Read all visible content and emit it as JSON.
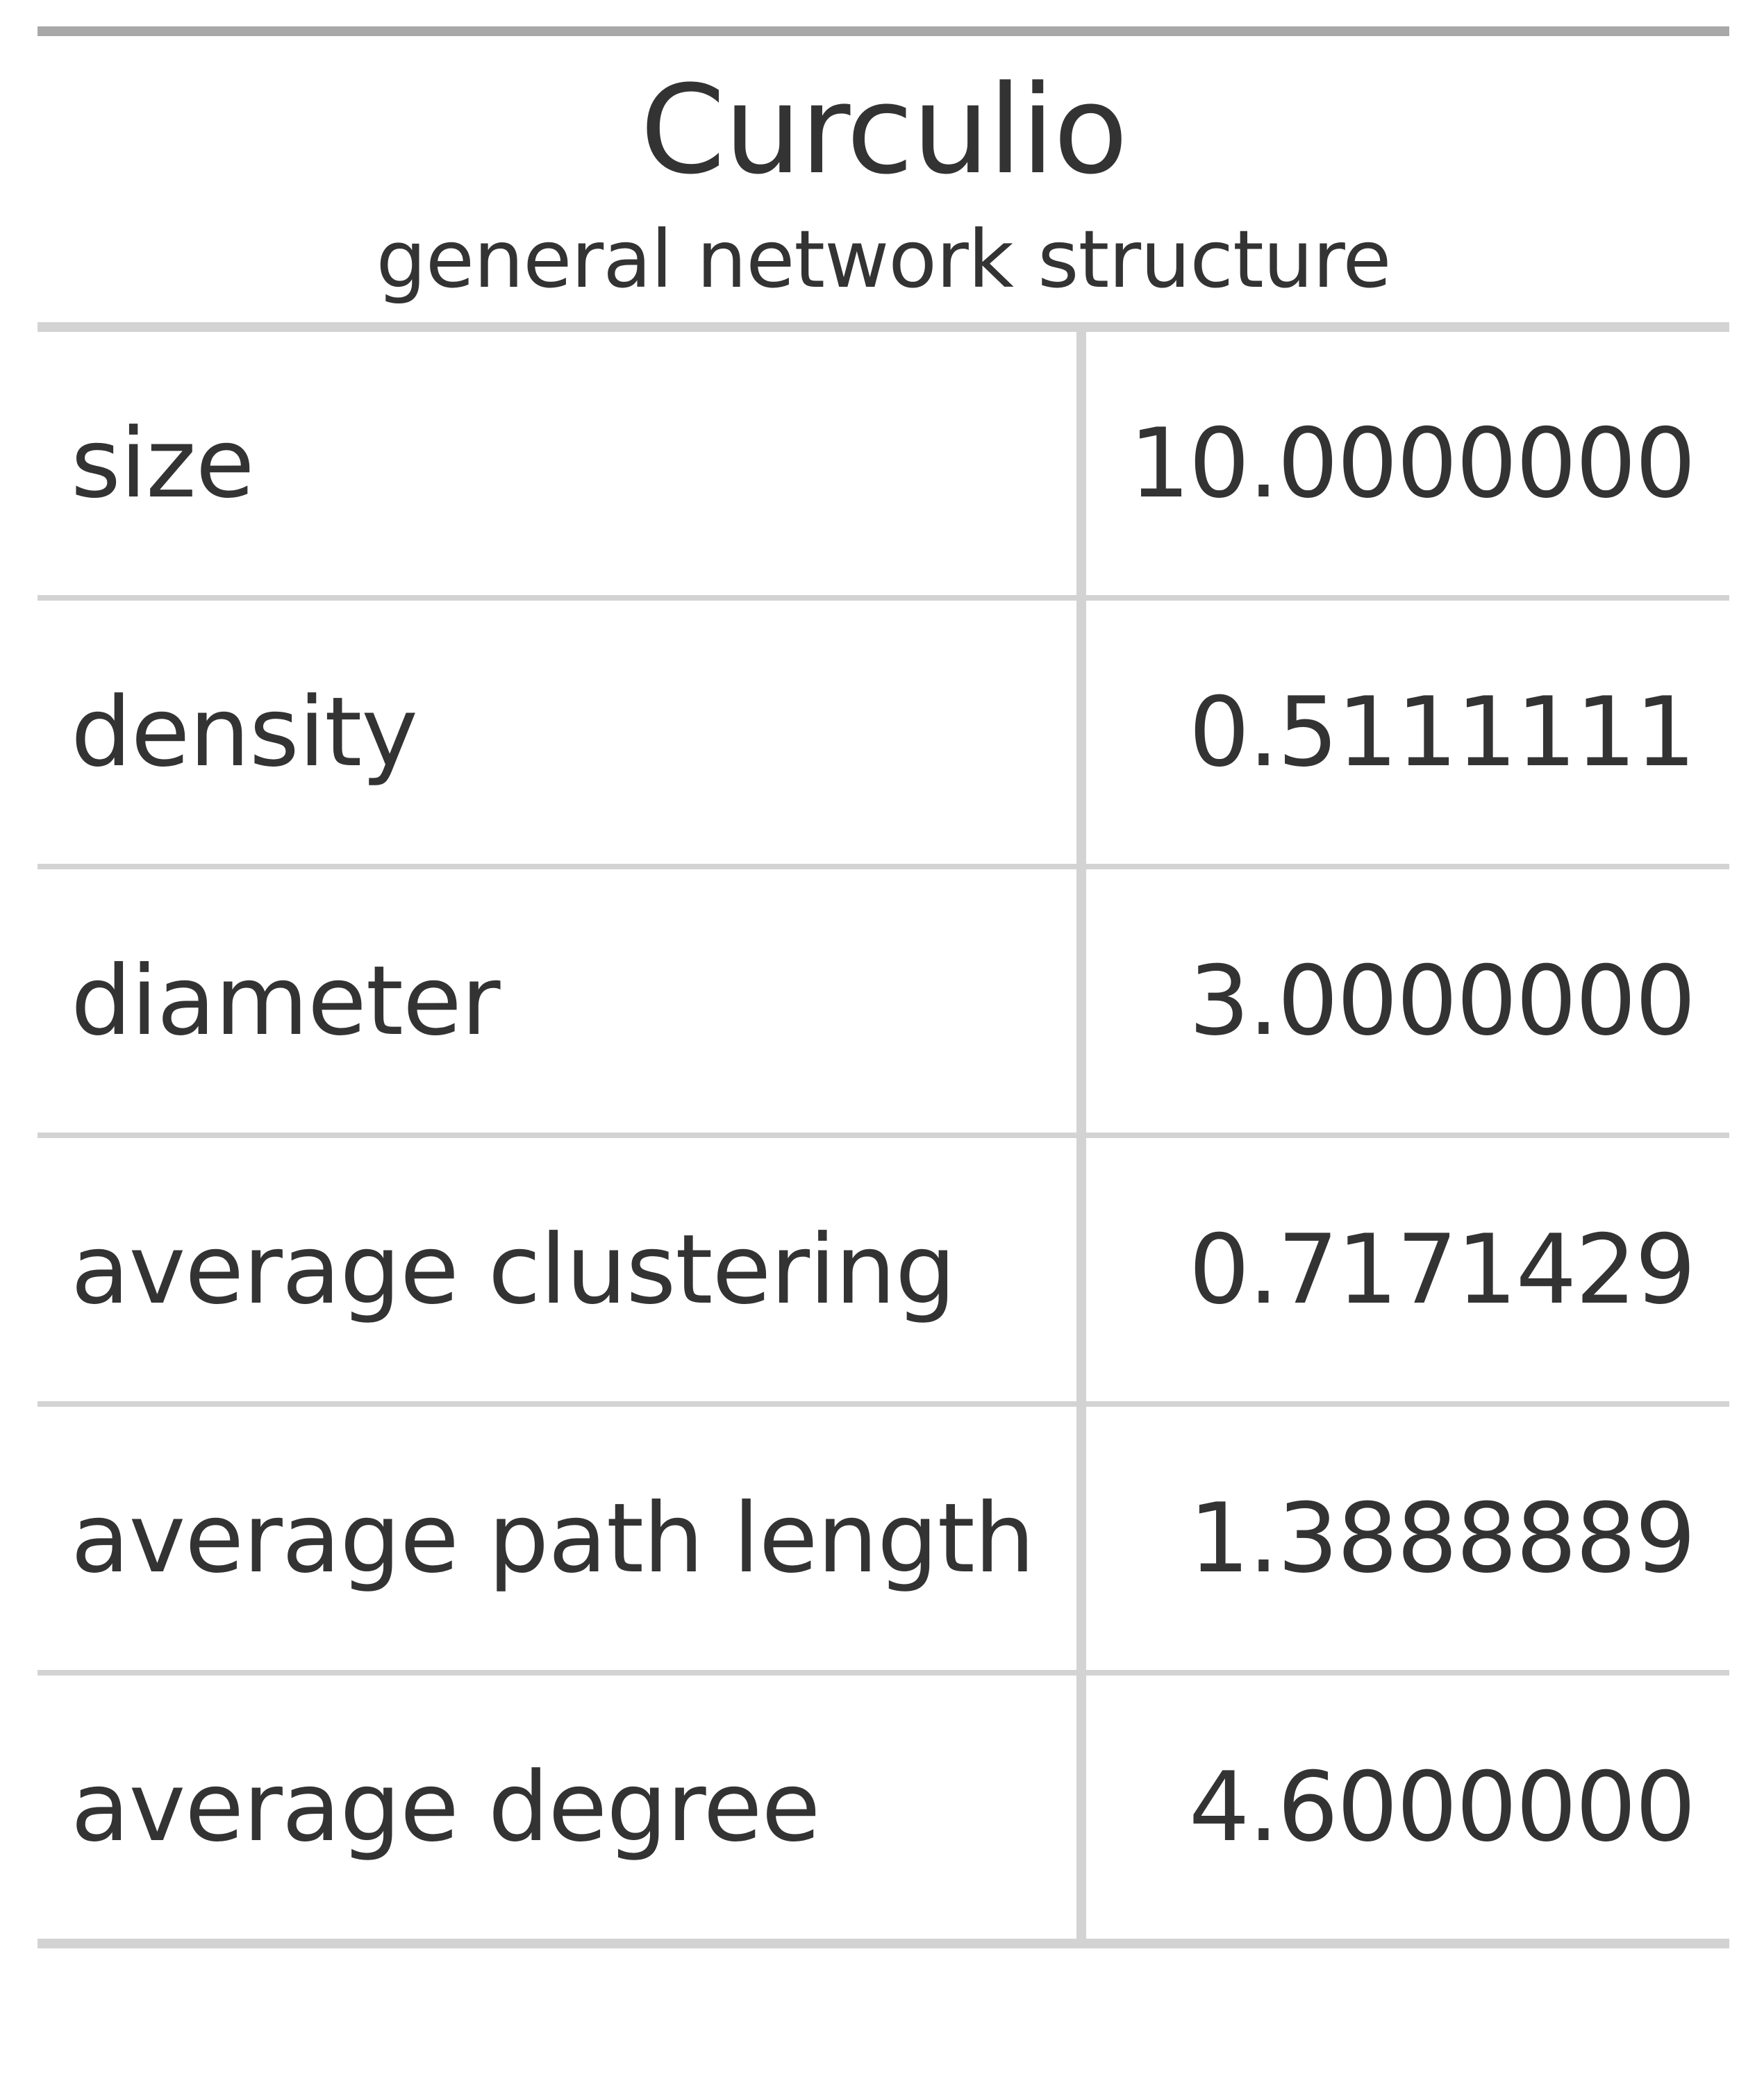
{
  "title": "Curculio",
  "subtitle": "general network structure",
  "rows": [
    {
      "label": "size",
      "value": "10.0000000"
    },
    {
      "label": "density",
      "value": "0.5111111"
    },
    {
      "label": "diameter",
      "value": "3.0000000"
    },
    {
      "label": "average clustering",
      "value": "0.7171429"
    },
    {
      "label": "average path length",
      "value": "1.3888889"
    },
    {
      "label": "average degree",
      "value": "4.6000000"
    }
  ]
}
